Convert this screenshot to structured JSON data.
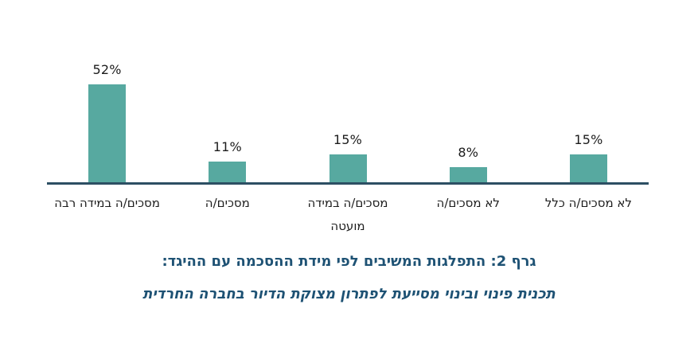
{
  "chart_data": {
    "type": "bar",
    "categories": [
      "מסכים/ה במידה רבה",
      "מסכים/ה",
      "מסכים/ה במידה מועטה",
      "לא מסכים/ה",
      "לא מסכים/ה כלל"
    ],
    "category_lines": [
      [
        "מסכים/ה במידה רבה"
      ],
      [
        "מסכים/ה"
      ],
      [
        "מסכים/ה במידה",
        "מועטה"
      ],
      [
        "לא מסכים/ה"
      ],
      [
        "לא מסכים/ה כלל"
      ]
    ],
    "values": [
      52,
      11,
      15,
      8,
      15
    ],
    "value_labels": [
      "52%",
      "11%",
      "15%",
      "8%",
      "15%"
    ],
    "title": "גרף 2: התפלגות המשיבים לפי מידת ההסכמה עם ההיגד:",
    "subtitle": "תכנית פינוי ובינוי מסייעת לפתרון מצוקת הדיור בחברה החרדית",
    "xlabel": "",
    "ylabel": "",
    "ylim": [
      0,
      55
    ],
    "grid": false,
    "legend": "none",
    "bar_color": "#57a9a0",
    "axis_color": "#2d4f63",
    "caption_color": "#1e5274",
    "label_color": "#1c1c1c"
  }
}
